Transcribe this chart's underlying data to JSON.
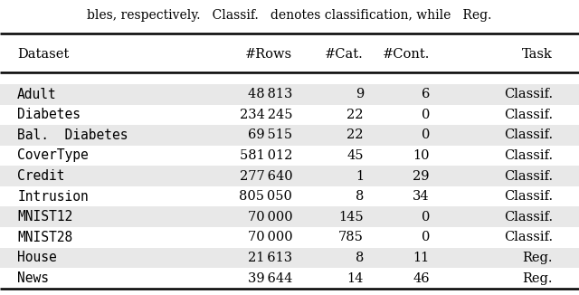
{
  "title_text": "bles, respectively.   Classif.   denotes classification, while   Reg.",
  "columns": [
    "Dataset",
    "#Rows",
    "#Cat.",
    "#Cont.",
    "Task"
  ],
  "rows": [
    [
      "Adult",
      "48 813",
      "9",
      "6",
      "Classif."
    ],
    [
      "Diabetes",
      "234 245",
      "22",
      "0",
      "Classif."
    ],
    [
      "Bal.  Diabetes",
      "69 515",
      "22",
      "0",
      "Classif."
    ],
    [
      "CoverType",
      "581 012",
      "45",
      "10",
      "Classif."
    ],
    [
      "Credit",
      "277 640",
      "1",
      "29",
      "Classif."
    ],
    [
      "Intrusion",
      "805 050",
      "8",
      "34",
      "Classif."
    ],
    [
      "MNIST12",
      "70 000",
      "145",
      "0",
      "Classif."
    ],
    [
      "MNIST28",
      "70 000",
      "785",
      "0",
      "Classif."
    ],
    [
      "House",
      "21 613",
      "8",
      "11",
      "Reg."
    ],
    [
      "News",
      "39 644",
      "14",
      "46",
      "Reg."
    ]
  ],
  "shaded_rows": [
    0,
    2,
    4,
    6,
    8
  ],
  "bg_color": "#ffffff",
  "shade_color": "#e8e8e8",
  "header_fontsize": 10.5,
  "row_fontsize": 10.5,
  "figsize": [
    6.4,
    3.26
  ],
  "dpi": 100
}
